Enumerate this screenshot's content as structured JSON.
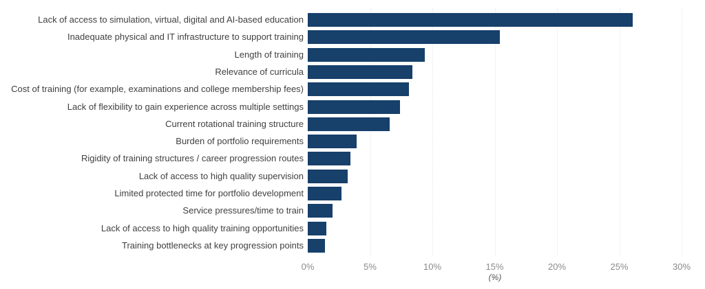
{
  "chart_data": {
    "type": "bar",
    "orientation": "horizontal",
    "title": "",
    "xlabel": "(%)",
    "ylabel": "",
    "xlim": [
      0,
      30
    ],
    "x_ticks": [
      "0%",
      "5%",
      "10%",
      "15%",
      "20%",
      "25%",
      "30%"
    ],
    "grid": "vertical dotted, light",
    "legend": "none",
    "bar_color": "#17406b",
    "categories": [
      "Lack of access to simulation, virtual, digital and AI-based education",
      "Inadequate physical and IT infrastructure to support training",
      "Length of training",
      "Relevance of curricula",
      "Cost of training (for example, examinations and college membership fees)",
      "Lack of flexibility to gain experience across multiple settings",
      "Current rotational training structure",
      "Burden of portfolio requirements",
      "Rigidity of training structures / career progression routes",
      "Lack of access to high quality supervision",
      "Limited protected time for portfolio development",
      "Service pressures/time to train",
      "Lack of access to high quality training opportunities",
      "Training bottlenecks at key progression points"
    ],
    "values": [
      26.1,
      15.4,
      9.4,
      8.4,
      8.1,
      7.4,
      6.6,
      3.9,
      3.4,
      3.2,
      2.7,
      2.0,
      1.5,
      1.4
    ]
  }
}
